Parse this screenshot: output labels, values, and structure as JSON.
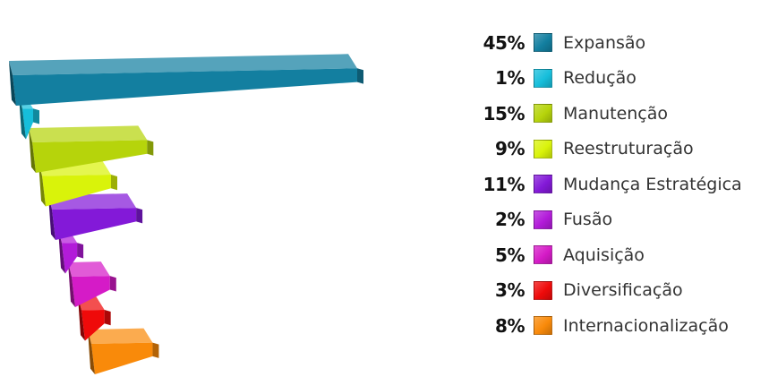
{
  "chart_data": {
    "type": "bar",
    "orientation": "horizontal",
    "three_d": true,
    "unit": "%",
    "categories": [
      "Expansão",
      "Redução",
      "Manutenção",
      "Reestruturação",
      "Mudança Estratégica",
      "Fusão",
      "Aquisição",
      "Diversificação",
      "Internacionalização"
    ],
    "values": [
      45,
      1,
      15,
      9,
      11,
      2,
      5,
      3,
      8
    ],
    "value_labels": [
      "45%",
      "1%",
      "15%",
      "9%",
      "11%",
      "2%",
      "5%",
      "3%",
      "8%"
    ],
    "colors": [
      "#137fa0",
      "#16bedb",
      "#b6d40b",
      "#d9f30a",
      "#8319d8",
      "#b21bd9",
      "#d51bc7",
      "#ef0a0a",
      "#f98a0a"
    ],
    "title": "",
    "xlabel": "",
    "ylabel": "",
    "legend": "right",
    "grid": false,
    "axes_visible": false
  }
}
